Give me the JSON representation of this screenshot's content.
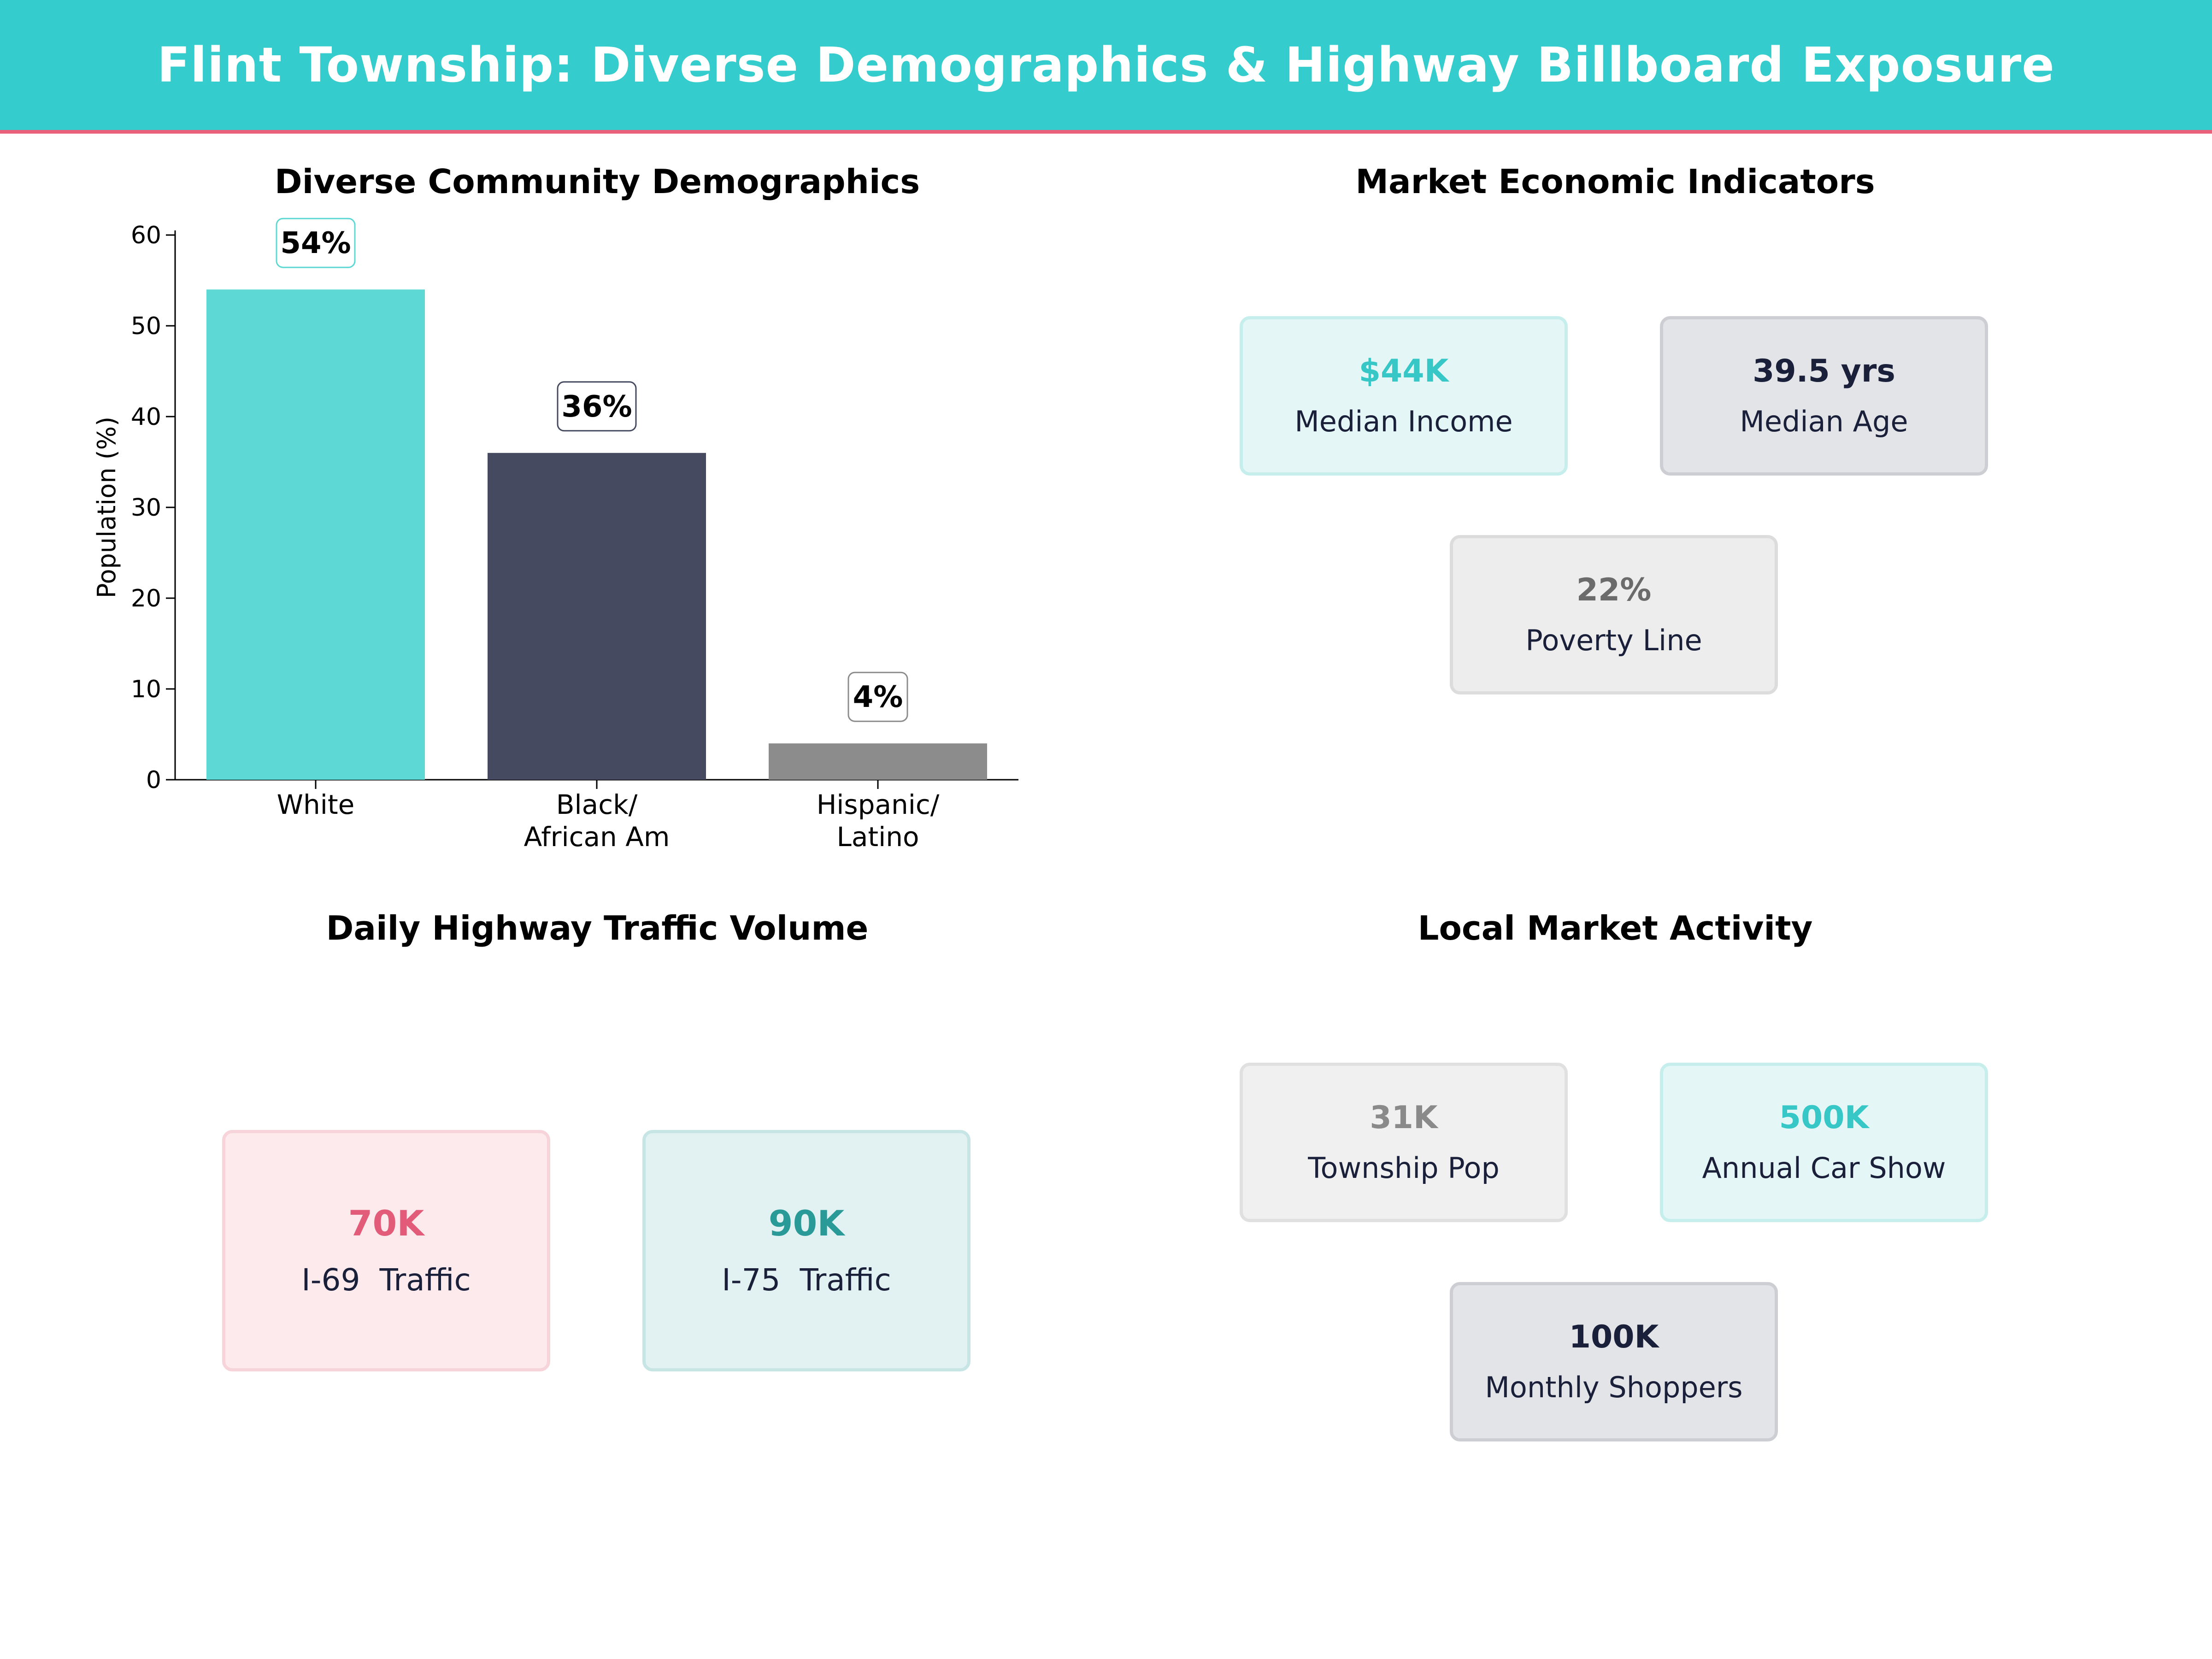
{
  "header": {
    "title": "Flint Township: Diverse Demographics & Highway Billboard Exposure"
  },
  "colors": {
    "header_bg": "#34cccc",
    "accent_line": "#e8607a",
    "teal": "#5ed8d5",
    "navy": "#464a60",
    "gray": "#8c8c8c"
  },
  "panels": {
    "demographics": {
      "title": "Diverse Community Demographics"
    },
    "economic": {
      "title": "Market Economic Indicators",
      "cards": [
        {
          "value": "$44K",
          "label": "Median Income"
        },
        {
          "value": "39.5 yrs",
          "label": "Median Age"
        },
        {
          "value": "22%",
          "label": "Poverty Line"
        }
      ]
    },
    "traffic": {
      "title": "Daily Highway Traffic Volume",
      "cards": [
        {
          "value": "70K",
          "label": "I-69  Traffic"
        },
        {
          "value": "90K",
          "label": "I-75  Traffic"
        }
      ]
    },
    "market": {
      "title": "Local Market Activity",
      "cards": [
        {
          "value": "31K",
          "label": "Township Pop"
        },
        {
          "value": "500K",
          "label": "Annual Car Show"
        },
        {
          "value": "100K",
          "label": "Monthly Shoppers"
        }
      ]
    }
  },
  "chart_data": {
    "type": "bar",
    "title": "Diverse Community Demographics",
    "categories": [
      [
        "White"
      ],
      [
        "Black/",
        "African Am"
      ],
      [
        "Hispanic/",
        "Latino"
      ]
    ],
    "values": [
      54,
      36,
      4
    ],
    "value_labels": [
      "54%",
      "36%",
      "4%"
    ],
    "bar_colors": [
      "#5ed8d5",
      "#464a60",
      "#8c8c8c"
    ],
    "label_border_colors": [
      "#5ed8d5",
      "#464a60",
      "#8c8c8c"
    ],
    "xlabel": "",
    "ylabel": "Population (%)",
    "ylim": [
      0,
      60
    ],
    "yticks": [
      0,
      10,
      20,
      30,
      40,
      50,
      60
    ],
    "grid": false
  }
}
